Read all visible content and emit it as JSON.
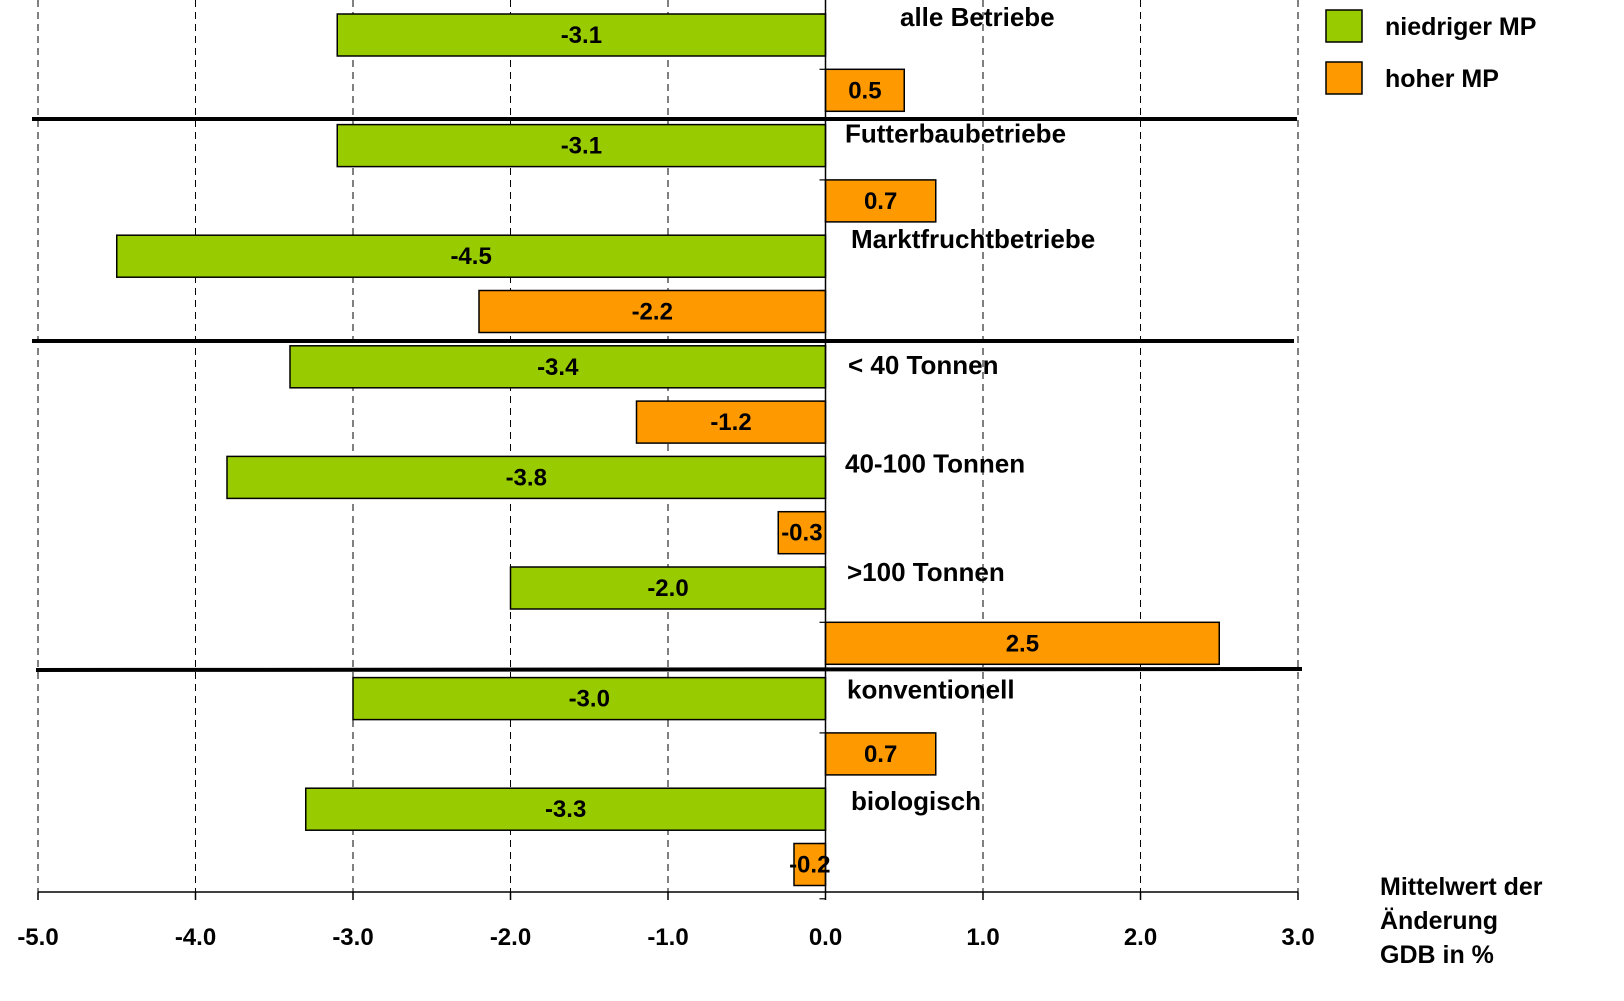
{
  "chart_data": {
    "type": "bar",
    "orientation": "horizontal",
    "xlim": [
      -5.0,
      3.0
    ],
    "x_ticks": [
      "-5.0",
      "-4.0",
      "-3.0",
      "-2.0",
      "-1.0",
      "0.0",
      "1.0",
      "2.0",
      "3.0"
    ],
    "xlabel_lines": [
      "Mittelwert der",
      "Änderung",
      "GDB in %"
    ],
    "grid": "vertical dashed",
    "legend_position": "top-right",
    "series": [
      {
        "name": "niedriger MP",
        "color": "#99cc00"
      },
      {
        "name": "hoher MP",
        "color": "#ff9900"
      }
    ],
    "categories": [
      {
        "label": "alle Betriebe",
        "values": [
          -3.1,
          0.5
        ],
        "value_labels": [
          "-3.1",
          "0.5"
        ]
      },
      {
        "label": "Futterbaubetriebe",
        "values": [
          -3.1,
          0.7
        ],
        "value_labels": [
          "-3.1",
          "0.7"
        ]
      },
      {
        "label": "Marktfruchtbetriebe",
        "values": [
          -4.5,
          -2.2
        ],
        "value_labels": [
          "-4.5",
          "-2.2"
        ]
      },
      {
        "label": "< 40 Tonnen",
        "values": [
          -3.4,
          -1.2
        ],
        "value_labels": [
          "-3.4",
          "-1.2"
        ]
      },
      {
        "label": "40-100 Tonnen",
        "values": [
          -3.8,
          -0.3
        ],
        "value_labels": [
          "-3.8",
          "-0.3"
        ]
      },
      {
        "label": ">100 Tonnen",
        "values": [
          -2.0,
          2.5
        ],
        "value_labels": [
          "-2.0",
          "2.5"
        ]
      },
      {
        "label": "konventionell",
        "values": [
          -3.0,
          0.7
        ],
        "value_labels": [
          "-3.0",
          "0.7"
        ]
      },
      {
        "label": "biologisch",
        "values": [
          -3.3,
          -0.2
        ],
        "value_labels": [
          "-3.3",
          "-0.2"
        ]
      }
    ],
    "group_separators_after": [
      0,
      2,
      5
    ]
  }
}
